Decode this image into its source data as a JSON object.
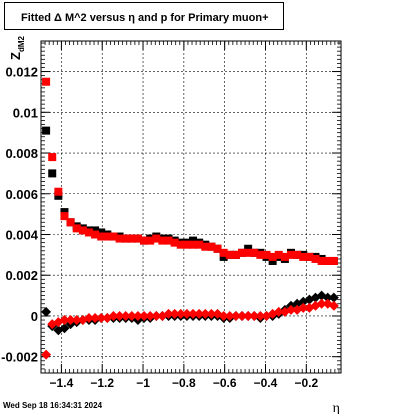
{
  "title": "Fitted Δ M^2 versus η and p for Primary muon+",
  "timestamp": "Wed Sep 18 16:34:31 2024",
  "colors": {
    "series_black": "#000000",
    "series_red": "#ff0000",
    "grid": "#000000"
  },
  "chart_data": {
    "type": "scatter",
    "title": "Fitted Δ M^2 versus η and p for Primary muon+",
    "xlabel": "η",
    "ylabel": "Z_{dM2}",
    "xlim": [
      -1.5,
      -0.03
    ],
    "ylim": [
      -0.0028,
      0.0135
    ],
    "xticks": [
      -1.4,
      -1.2,
      -1.0,
      -0.8,
      -0.6,
      -0.4,
      -0.2
    ],
    "xtick_labels": [
      "−1.4",
      "−1.2",
      "−1",
      "−0.8",
      "−0.6",
      "−0.4",
      "−0.2"
    ],
    "yticks": [
      -0.002,
      0,
      0.002,
      0.004,
      0.006,
      0.008,
      0.01,
      0.012
    ],
    "ytick_labels": [
      "-0.002",
      "0",
      "0.002",
      "0.004",
      "0.006",
      "0.008",
      "0.01",
      "0.012"
    ],
    "grid": true,
    "x": [
      -1.475,
      -1.445,
      -1.415,
      -1.385,
      -1.355,
      -1.325,
      -1.295,
      -1.265,
      -1.235,
      -1.205,
      -1.175,
      -1.145,
      -1.115,
      -1.085,
      -1.055,
      -1.025,
      -0.995,
      -0.965,
      -0.935,
      -0.905,
      -0.875,
      -0.845,
      -0.815,
      -0.785,
      -0.755,
      -0.725,
      -0.695,
      -0.665,
      -0.635,
      -0.605,
      -0.575,
      -0.545,
      -0.515,
      -0.485,
      -0.455,
      -0.425,
      -0.395,
      -0.365,
      -0.335,
      -0.305,
      -0.275,
      -0.245,
      -0.215,
      -0.185,
      -0.155,
      -0.125,
      -0.095,
      -0.065
    ],
    "series": [
      {
        "marker": "square",
        "color": "#000000",
        "values": [
          0.0091,
          0.007,
          0.0059,
          0.0051,
          0.0046,
          0.0044,
          0.0043,
          0.0042,
          0.0042,
          0.0041,
          0.004,
          0.0039,
          0.0039,
          0.0038,
          0.0038,
          0.0038,
          0.0037,
          0.0038,
          0.0039,
          0.0038,
          0.0038,
          0.0037,
          0.0036,
          0.0036,
          0.0037,
          0.0036,
          0.0035,
          0.0034,
          0.0033,
          0.0029,
          0.003,
          0.003,
          0.0031,
          0.0033,
          0.0031,
          0.0031,
          0.0029,
          0.0027,
          0.0029,
          0.0028,
          0.0031,
          0.003,
          0.003,
          0.0029,
          0.0029,
          0.0028,
          0.0027,
          0.0027
        ]
      },
      {
        "marker": "square",
        "color": "#ff0000",
        "values": [
          0.0115,
          0.0078,
          0.0061,
          0.0049,
          0.0046,
          0.0043,
          0.0042,
          0.0041,
          0.004,
          0.0039,
          0.0039,
          0.0039,
          0.0038,
          0.0038,
          0.0038,
          0.0038,
          0.0037,
          0.0037,
          0.0038,
          0.0037,
          0.0037,
          0.0036,
          0.0035,
          0.0035,
          0.0035,
          0.0035,
          0.0034,
          0.0034,
          0.0033,
          0.0031,
          0.003,
          0.003,
          0.0031,
          0.0031,
          0.0031,
          0.003,
          0.003,
          0.0029,
          0.003,
          0.0029,
          0.003,
          0.003,
          0.0029,
          0.0029,
          0.0028,
          0.0027,
          0.0027,
          0.0027
        ]
      },
      {
        "marker": "diamond",
        "color": "#000000",
        "values": [
          0.0002,
          -0.0005,
          -0.0007,
          -0.0006,
          -0.0004,
          -0.0003,
          -0.0002,
          -0.0002,
          -0.0002,
          -0.0001,
          -0.0001,
          -0.0001,
          -0.0001,
          -0.0001,
          -0.0001,
          -0.0002,
          -0.0001,
          -0.0001,
          0.0,
          0.0,
          0.0,
          0.0,
          0.0,
          0.0,
          0.0,
          0.0,
          0.0,
          0.0,
          0.0,
          -0.0001,
          -0.0001,
          0.0,
          0.0,
          0.0,
          0.0,
          -0.0001,
          0.0,
          0.0,
          0.0001,
          0.0003,
          0.0005,
          0.0006,
          0.0007,
          0.0008,
          0.0009,
          0.001,
          0.0009,
          0.0009
        ]
      },
      {
        "marker": "diamond",
        "color": "#ff0000",
        "values": [
          -0.0019,
          -0.0004,
          -0.0003,
          -0.0002,
          -0.0002,
          -0.0002,
          -0.0002,
          -0.0001,
          -0.0001,
          -0.0001,
          -0.0001,
          0.0,
          0.0,
          0.0,
          0.0,
          0.0,
          0.0,
          0.0,
          0.0,
          0.0,
          0.0001,
          0.0001,
          0.0001,
          0.0001,
          0.0001,
          0.0001,
          0.0001,
          0.0001,
          0.0001,
          0.0,
          0.0,
          0.0,
          0.0,
          0.0,
          0.0,
          0.0,
          0.0,
          0.0001,
          0.0002,
          0.0002,
          0.0003,
          0.0003,
          0.0004,
          0.0004,
          0.0005,
          0.0006,
          0.0006,
          0.0005
        ]
      }
    ]
  }
}
